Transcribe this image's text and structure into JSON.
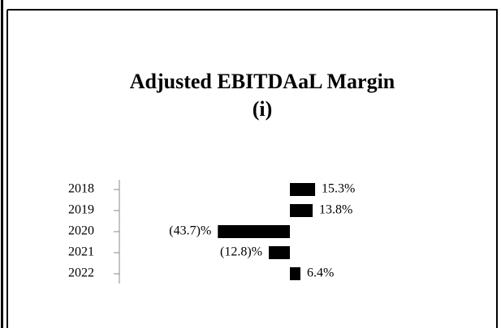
{
  "chart_data": {
    "type": "bar",
    "orientation": "horizontal",
    "title": [
      "Adjusted EBITDAaL Margin",
      "(i)"
    ],
    "categories": [
      "2018",
      "2019",
      "2020",
      "2021",
      "2022"
    ],
    "values": [
      15.3,
      13.8,
      -43.7,
      -12.8,
      6.4
    ],
    "value_labels": [
      "15.3%",
      "13.8%",
      "(43.7)%",
      "(12.8)%",
      "6.4%"
    ],
    "color": "#000000"
  }
}
